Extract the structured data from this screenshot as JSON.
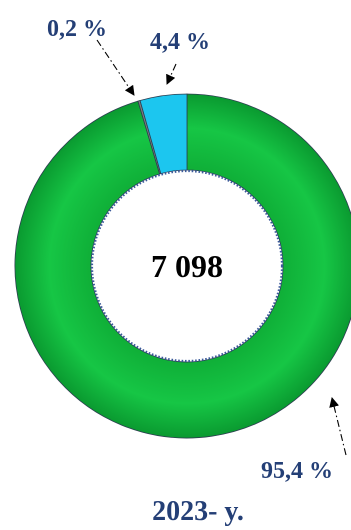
{
  "chart_data": {
    "type": "pie",
    "variant": "donut",
    "categories": [
      "",
      "",
      ""
    ],
    "values": [
      95.4,
      0.2,
      4.4
    ],
    "value_labels": [
      "95,4 %",
      "0,2 %",
      "4,4 %"
    ],
    "colors": [
      "#14c342",
      "#7f7f7f",
      "#1cc6ef"
    ],
    "center_label": "7 098",
    "footer": "2023- y.",
    "title": "",
    "legend": "none"
  }
}
